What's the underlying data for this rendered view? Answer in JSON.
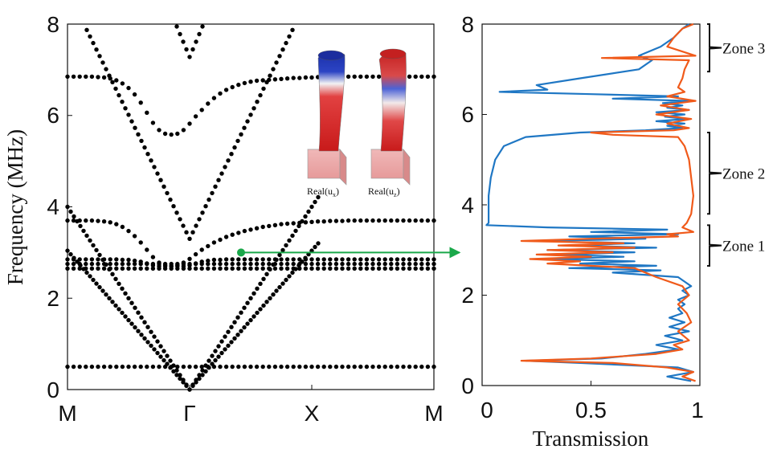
{
  "chart_data": [
    {
      "type": "scatter",
      "title": "",
      "xlabel": "",
      "ylabel": "Frequency (MHz)",
      "x_tick_labels": [
        "M",
        "Γ",
        "X",
        "M"
      ],
      "y_ticks": [
        0,
        2,
        4,
        6,
        8
      ],
      "ylim": [
        0,
        8
      ],
      "dot_color": "#000000",
      "bands": [
        {
          "name": "",
          "y": [
            0.5,
            0.5,
            0.5,
            0.5,
            0.5,
            0.5,
            0.5,
            0.5,
            0.5,
            0.5,
            0.5,
            0.5,
            0.5,
            0.5,
            0.5,
            0.5,
            0.5,
            0.5,
            0.5,
            0.5,
            0.5,
            0.5,
            0.5,
            0.5,
            0.5,
            0.5,
            0.5,
            0.5,
            0.5,
            0.5,
            0.5,
            0.5,
            0.5,
            0.5,
            0.5,
            0.5,
            0.5,
            0.5,
            0.5,
            0.5,
            0.5,
            0.5,
            0.5,
            0.5,
            0.5,
            0.5,
            0.5,
            0.5,
            0.5,
            0.5,
            0.5,
            0.5,
            0.5,
            0.5,
            0.5,
            0.5,
            0.5,
            0.5,
            0.5,
            0.5,
            0.5
          ]
        },
        {
          "name": "",
          "y": [
            2.65,
            2.65,
            2.65,
            2.65,
            2.65,
            2.65,
            2.65,
            2.65,
            2.65,
            2.65,
            2.65,
            2.65,
            2.65,
            2.65,
            2.65,
            2.65,
            2.65,
            2.65,
            2.65,
            2.65,
            2.65,
            2.65,
            2.65,
            2.65,
            2.65,
            2.65,
            2.65,
            2.65,
            2.65,
            2.65,
            2.65,
            2.65,
            2.65,
            2.65,
            2.65,
            2.65,
            2.65,
            2.65,
            2.65,
            2.65,
            2.65,
            2.65,
            2.65,
            2.65,
            2.65,
            2.65,
            2.65,
            2.65,
            2.65,
            2.65,
            2.65,
            2.65,
            2.65,
            2.65,
            2.65,
            2.65,
            2.65,
            2.65,
            2.65,
            2.65,
            2.65
          ]
        },
        {
          "name": "",
          "y": [
            2.75,
            2.75,
            2.75,
            2.75,
            2.75,
            2.75,
            2.75,
            2.75,
            2.75,
            2.75,
            2.75,
            2.75,
            2.75,
            2.75,
            2.75,
            2.75,
            2.75,
            2.75,
            2.75,
            2.75,
            2.75,
            2.75,
            2.75,
            2.75,
            2.75,
            2.75,
            2.75,
            2.75,
            2.75,
            2.75,
            2.75,
            2.75,
            2.75,
            2.75,
            2.75,
            2.75,
            2.75,
            2.75,
            2.75,
            2.75,
            2.75,
            2.75,
            2.75,
            2.75,
            2.75,
            2.75,
            2.75,
            2.75,
            2.75,
            2.75,
            2.75,
            2.75,
            2.75,
            2.75,
            2.75,
            2.75,
            2.75,
            2.75,
            2.75,
            2.75,
            2.75
          ]
        },
        {
          "name": "",
          "y": [
            2.85,
            2.85,
            2.85,
            2.85,
            2.85,
            2.85,
            2.85,
            2.85,
            2.85,
            2.84,
            2.84,
            2.82,
            2.8,
            2.76,
            2.72,
            2.7,
            2.7,
            2.7,
            2.7,
            2.7,
            2.72,
            2.76,
            2.8,
            2.82,
            2.84,
            2.84,
            2.85,
            2.85,
            2.85,
            2.85,
            2.85,
            2.85,
            2.85,
            2.85,
            2.85,
            2.85,
            2.85,
            2.85,
            2.85,
            2.85,
            2.85,
            2.85,
            2.85,
            2.85,
            2.85,
            2.85,
            2.85,
            2.85,
            2.85,
            2.85,
            2.85,
            2.85,
            2.85,
            2.85,
            2.85,
            2.85,
            2.85,
            2.85,
            2.85,
            2.85,
            2.85
          ]
        },
        {
          "name": "",
          "y": [
            3.7,
            3.7,
            3.7,
            3.7,
            3.7,
            3.69,
            3.68,
            3.66,
            3.62,
            3.56,
            3.47,
            3.36,
            3.22,
            3.06,
            2.9,
            2.78,
            2.72,
            2.7,
            2.72,
            2.78,
            2.86,
            2.96,
            3.06,
            3.14,
            3.22,
            3.28,
            3.34,
            3.39,
            3.43,
            3.47,
            3.5,
            3.53,
            3.56,
            3.58,
            3.6,
            3.62,
            3.63,
            3.64,
            3.65,
            3.66,
            3.67,
            3.68,
            3.68,
            3.69,
            3.69,
            3.69,
            3.7,
            3.7,
            3.7,
            3.7,
            3.7,
            3.7,
            3.7,
            3.7,
            3.7,
            3.7,
            3.7,
            3.7,
            3.7,
            3.7,
            3.7
          ]
        },
        {
          "name": "",
          "y": [
            6.85,
            6.85,
            6.85,
            6.85,
            6.85,
            6.84,
            6.83,
            6.81,
            6.77,
            6.7,
            6.6,
            6.46,
            6.28,
            6.06,
            5.84,
            5.68,
            5.6,
            5.58,
            5.6,
            5.68,
            5.82,
            5.98,
            6.12,
            6.26,
            6.38,
            6.48,
            6.56,
            6.62,
            6.67,
            6.71,
            6.74,
            6.76,
            6.77,
            6.78,
            6.79,
            6.8,
            6.81,
            6.82,
            6.82,
            6.83,
            6.83,
            6.84,
            6.84,
            6.84,
            6.85,
            6.85,
            6.85,
            6.85,
            6.85,
            6.85,
            6.85,
            6.85,
            6.85,
            6.85,
            6.85,
            6.85,
            6.85,
            6.85,
            6.85,
            6.85,
            6.85
          ]
        }
      ],
      "cone_bands": [
        {
          "name": "",
          "a": 0.0,
          "k": 38.0
        },
        {
          "name": "",
          "a": 0.0,
          "k": 50.0
        },
        {
          "name": "",
          "a": 3.3,
          "k": 28.0
        },
        {
          "name": "",
          "a": 7.28,
          "k": 24.0
        }
      ],
      "marker": {
        "y": 3.0,
        "color": "#1aa84a"
      },
      "inset_labels": [
        {
          "main": "Real(u",
          "sub": "x",
          "end": ")"
        },
        {
          "main": "Real(u",
          "sub": "z",
          "end": ")"
        }
      ]
    },
    {
      "type": "line",
      "title": "",
      "xlabel": "Transmission",
      "ylabel": "",
      "xlim": [
        0,
        1
      ],
      "ylim": [
        0,
        8
      ],
      "x_ticks": [
        "0",
        "0.5",
        "1"
      ],
      "y_ticks": [
        0,
        2,
        4,
        6,
        8
      ],
      "series": [
        {
          "name": "",
          "color": "#1f77c4",
          "y": [
            0.1,
            0.2,
            0.3,
            0.4,
            0.5,
            0.55,
            0.6,
            0.7,
            0.8,
            0.9,
            1.0,
            1.1,
            1.2,
            1.3,
            1.4,
            1.5,
            1.6,
            1.7,
            1.8,
            1.9,
            2.0,
            2.1,
            2.2,
            2.3,
            2.4,
            2.5,
            2.55,
            2.6,
            2.65,
            2.7,
            2.75,
            2.8,
            2.85,
            2.9,
            2.95,
            3.0,
            3.05,
            3.1,
            3.15,
            3.2,
            3.25,
            3.3,
            3.35,
            3.4,
            3.45,
            3.5,
            3.55,
            3.6,
            3.8,
            4.2,
            4.6,
            5.0,
            5.3,
            5.5,
            5.6,
            5.65,
            5.7,
            5.75,
            5.8,
            5.85,
            5.9,
            5.95,
            6.0,
            6.05,
            6.1,
            6.15,
            6.2,
            6.25,
            6.3,
            6.35,
            6.4,
            6.45,
            6.5,
            6.55,
            6.65,
            6.8,
            7.0,
            7.2,
            7.3,
            7.5,
            7.7,
            7.9,
            8.0
          ],
          "x": [
            0.96,
            0.85,
            0.97,
            0.9,
            0.45,
            0.2,
            0.55,
            0.75,
            0.9,
            0.8,
            0.92,
            0.84,
            0.95,
            0.86,
            0.93,
            0.86,
            0.92,
            0.9,
            0.93,
            0.9,
            0.95,
            0.92,
            0.96,
            0.93,
            0.9,
            0.6,
            0.82,
            0.4,
            0.8,
            0.45,
            0.7,
            0.3,
            0.65,
            0.35,
            0.7,
            0.3,
            0.8,
            0.4,
            0.7,
            0.3,
            0.75,
            0.4,
            0.9,
            0.5,
            0.85,
            0.3,
            0.02,
            0.03,
            0.03,
            0.03,
            0.04,
            0.06,
            0.1,
            0.2,
            0.45,
            0.75,
            0.92,
            0.85,
            0.93,
            0.8,
            0.94,
            0.84,
            0.93,
            0.8,
            0.95,
            0.85,
            0.92,
            0.83,
            0.95,
            0.6,
            0.9,
            0.5,
            0.08,
            0.3,
            0.25,
            0.45,
            0.72,
            0.78,
            0.72,
            0.82,
            0.88,
            0.92,
            0.95
          ]
        },
        {
          "name": "",
          "color": "#f05a1a",
          "y": [
            0.1,
            0.2,
            0.3,
            0.4,
            0.5,
            0.55,
            0.6,
            0.7,
            0.8,
            0.9,
            1.0,
            1.2,
            1.4,
            1.6,
            1.8,
            2.0,
            2.2,
            2.4,
            2.6,
            2.65,
            2.7,
            2.75,
            2.8,
            2.85,
            2.9,
            2.95,
            3.0,
            3.05,
            3.1,
            3.15,
            3.2,
            3.25,
            3.3,
            3.35,
            3.4,
            3.5,
            3.6,
            3.8,
            4.2,
            4.6,
            5.0,
            5.3,
            5.5,
            5.55,
            5.6,
            5.65,
            5.7,
            5.8,
            5.9,
            6.0,
            6.1,
            6.2,
            6.3,
            6.4,
            6.5,
            6.6,
            6.8,
            7.0,
            7.2,
            7.25,
            7.3,
            7.5,
            7.7,
            7.9,
            8.0
          ],
          "x": [
            0.98,
            0.92,
            0.97,
            0.85,
            0.6,
            0.18,
            0.5,
            0.8,
            0.92,
            0.88,
            0.95,
            0.9,
            0.96,
            0.94,
            0.9,
            0.95,
            0.92,
            0.8,
            0.7,
            0.5,
            0.3,
            0.45,
            0.22,
            0.5,
            0.25,
            0.6,
            0.3,
            0.7,
            0.35,
            0.65,
            0.18,
            0.5,
            0.9,
            0.85,
            0.97,
            0.92,
            0.94,
            0.96,
            0.97,
            0.96,
            0.95,
            0.93,
            0.9,
            0.6,
            0.5,
            0.88,
            0.95,
            0.85,
            0.96,
            0.8,
            0.95,
            0.82,
            0.98,
            0.85,
            0.93,
            0.9,
            0.92,
            0.93,
            0.95,
            0.55,
            0.98,
            0.85,
            0.88,
            0.92,
            0.97
          ]
        }
      ],
      "zones": [
        {
          "label": "Zone 1",
          "y_range": [
            2.65,
            3.55
          ]
        },
        {
          "label": "Zone 2",
          "y_range": [
            3.8,
            5.6
          ]
        },
        {
          "label": "Zone 3",
          "y_range": [
            6.95,
            8.0
          ]
        }
      ]
    }
  ]
}
